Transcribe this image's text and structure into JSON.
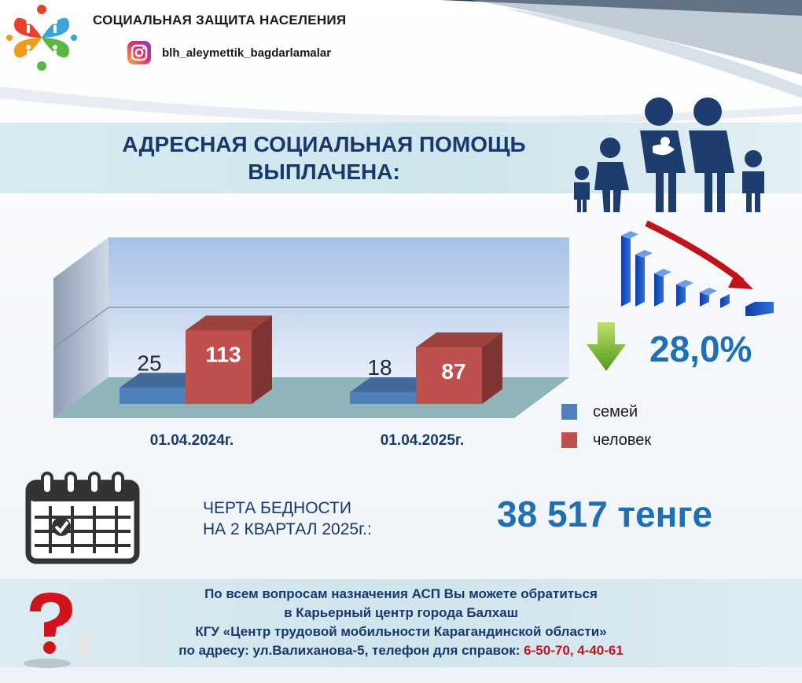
{
  "header": {
    "title": "СОЦИАЛЬНАЯ ЗАЩИТА НАСЕЛЕНИЯ",
    "instagram_handle": "blh_aleymettik_bagdarlamalar"
  },
  "banner": {
    "title_line1": "АДРЕСНАЯ СОЦИАЛЬНАЯ ПОМОЩЬ",
    "title_line2": "ВЫПЛАЧЕНА:"
  },
  "change": {
    "percent": "28,0%",
    "direction": "down"
  },
  "chart_data": {
    "type": "bar",
    "categories": [
      "01.04.2024г.",
      "01.04.2025г."
    ],
    "series": [
      {
        "name": "семей",
        "values": [
          25,
          18
        ],
        "color": "#4f81bd"
      },
      {
        "name": "человек",
        "values": [
          113,
          87
        ],
        "color": "#c0504d"
      }
    ],
    "legend_position": "bottom-right",
    "grid": true,
    "three_d": true,
    "ylim": [
      0,
      220
    ],
    "gridlines_at": [
      0,
      110,
      220
    ]
  },
  "poverty": {
    "label_line1": "ЧЕРТА БЕДНОСТИ",
    "label_line2": "НА 2 КВАРТАЛ 2025г.:",
    "value": "38 517 тенге"
  },
  "footer": {
    "line1": "По всем вопросам назначения АСП Вы можете обратиться",
    "line2": "в Карьерный центр города Балхаш",
    "line3": "КГУ «Центр трудовой мобильности Карагандинской области»",
    "line4_prefix": "по адресу: ул.Валиханова-5, телефон для справок: ",
    "phones": "6-50-70, 4-40-61"
  },
  "icons": {
    "logo": "social-protection-logo",
    "instagram": "instagram-icon",
    "family": "family-icon",
    "declining_bars": "declining-bars-icon",
    "down_arrow": "down-arrow-icon",
    "calendar": "calendar-icon",
    "question": "question-mark-person-icon"
  },
  "colors": {
    "title_blue": "#17396b",
    "accent_blue": "#1f6fb4",
    "phone_red": "#c4141c",
    "banner_bg": "#d3e8ef"
  }
}
